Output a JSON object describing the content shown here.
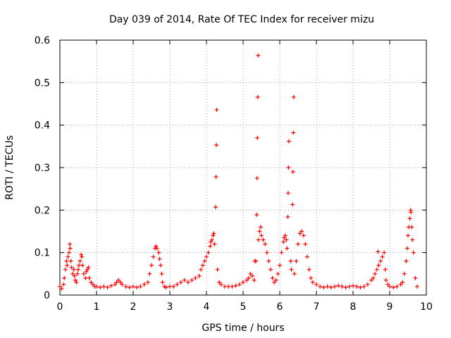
{
  "chart_data": {
    "type": "scatter",
    "title": "Day 039 of 2014, Rate Of TEC Index for receiver mizu",
    "xlabel": "GPS time / hours",
    "ylabel": "ROTI / TECUs",
    "xlim": [
      0,
      10
    ],
    "ylim": [
      0,
      0.6
    ],
    "xticks": [
      "0",
      "1",
      "2",
      "3",
      "4",
      "5",
      "6",
      "7",
      "8",
      "9",
      "10"
    ],
    "yticks": [
      "0",
      "0.1",
      "0.2",
      "0.3",
      "0.4",
      "0.5",
      "0.6"
    ],
    "grid": true,
    "marker": "+",
    "color": "#ff0000",
    "series": [
      {
        "points": [
          [
            0.0,
            0.02
          ],
          [
            0.05,
            0.015
          ],
          [
            0.1,
            0.025
          ],
          [
            0.12,
            0.04
          ],
          [
            0.15,
            0.06
          ],
          [
            0.18,
            0.08
          ],
          [
            0.2,
            0.07
          ],
          [
            0.22,
            0.09
          ],
          [
            0.25,
            0.1
          ],
          [
            0.27,
            0.12
          ],
          [
            0.28,
            0.11
          ],
          [
            0.3,
            0.08
          ],
          [
            0.32,
            0.065
          ],
          [
            0.35,
            0.05
          ],
          [
            0.38,
            0.06
          ],
          [
            0.4,
            0.045
          ],
          [
            0.42,
            0.035
          ],
          [
            0.45,
            0.03
          ],
          [
            0.48,
            0.05
          ],
          [
            0.5,
            0.06
          ],
          [
            0.52,
            0.07
          ],
          [
            0.55,
            0.08
          ],
          [
            0.58,
            0.095
          ],
          [
            0.6,
            0.09
          ],
          [
            0.62,
            0.07
          ],
          [
            0.65,
            0.05
          ],
          [
            0.7,
            0.04
          ],
          [
            0.72,
            0.055
          ],
          [
            0.75,
            0.06
          ],
          [
            0.78,
            0.065
          ],
          [
            0.8,
            0.04
          ],
          [
            0.85,
            0.03
          ],
          [
            0.9,
            0.025
          ],
          [
            0.95,
            0.02
          ],
          [
            1.0,
            0.02
          ],
          [
            1.1,
            0.018
          ],
          [
            1.2,
            0.02
          ],
          [
            1.3,
            0.018
          ],
          [
            1.4,
            0.022
          ],
          [
            1.5,
            0.025
          ],
          [
            1.55,
            0.03
          ],
          [
            1.6,
            0.035
          ],
          [
            1.65,
            0.03
          ],
          [
            1.7,
            0.025
          ],
          [
            1.8,
            0.02
          ],
          [
            1.9,
            0.018
          ],
          [
            2.0,
            0.02
          ],
          [
            2.1,
            0.018
          ],
          [
            2.2,
            0.02
          ],
          [
            2.3,
            0.025
          ],
          [
            2.4,
            0.03
          ],
          [
            2.45,
            0.05
          ],
          [
            2.5,
            0.07
          ],
          [
            2.55,
            0.09
          ],
          [
            2.6,
            0.11
          ],
          [
            2.62,
            0.115
          ],
          [
            2.65,
            0.11
          ],
          [
            2.7,
            0.1
          ],
          [
            2.72,
            0.085
          ],
          [
            2.75,
            0.07
          ],
          [
            2.78,
            0.05
          ],
          [
            2.8,
            0.03
          ],
          [
            2.85,
            0.02
          ],
          [
            2.9,
            0.018
          ],
          [
            3.0,
            0.02
          ],
          [
            3.1,
            0.02
          ],
          [
            3.2,
            0.025
          ],
          [
            3.3,
            0.03
          ],
          [
            3.4,
            0.035
          ],
          [
            3.5,
            0.03
          ],
          [
            3.6,
            0.035
          ],
          [
            3.7,
            0.04
          ],
          [
            3.8,
            0.045
          ],
          [
            3.85,
            0.06
          ],
          [
            3.9,
            0.07
          ],
          [
            3.95,
            0.08
          ],
          [
            4.0,
            0.09
          ],
          [
            4.05,
            0.1
          ],
          [
            4.1,
            0.115
          ],
          [
            4.12,
            0.125
          ],
          [
            4.15,
            0.13
          ],
          [
            4.18,
            0.14
          ],
          [
            4.2,
            0.145
          ],
          [
            4.22,
            0.12
          ],
          [
            4.25,
            0.207
          ],
          [
            4.26,
            0.278
          ],
          [
            4.27,
            0.353
          ],
          [
            4.28,
            0.436
          ],
          [
            4.3,
            0.06
          ],
          [
            4.35,
            0.03
          ],
          [
            4.4,
            0.025
          ],
          [
            4.5,
            0.02
          ],
          [
            4.6,
            0.02
          ],
          [
            4.7,
            0.02
          ],
          [
            4.8,
            0.022
          ],
          [
            4.9,
            0.025
          ],
          [
            5.0,
            0.03
          ],
          [
            5.1,
            0.035
          ],
          [
            5.15,
            0.04
          ],
          [
            5.2,
            0.05
          ],
          [
            5.25,
            0.045
          ],
          [
            5.3,
            0.035
          ],
          [
            5.32,
            0.08
          ],
          [
            5.35,
            0.08
          ],
          [
            5.37,
            0.189
          ],
          [
            5.38,
            0.275
          ],
          [
            5.39,
            0.37
          ],
          [
            5.4,
            0.466
          ],
          [
            5.41,
            0.564
          ],
          [
            5.42,
            0.13
          ],
          [
            5.45,
            0.15
          ],
          [
            5.48,
            0.16
          ],
          [
            5.5,
            0.14
          ],
          [
            5.55,
            0.13
          ],
          [
            5.6,
            0.12
          ],
          [
            5.65,
            0.1
          ],
          [
            5.7,
            0.08
          ],
          [
            5.75,
            0.06
          ],
          [
            5.8,
            0.04
          ],
          [
            5.85,
            0.03
          ],
          [
            5.9,
            0.035
          ],
          [
            5.95,
            0.05
          ],
          [
            6.0,
            0.07
          ],
          [
            6.05,
            0.1
          ],
          [
            6.1,
            0.125
          ],
          [
            6.12,
            0.135
          ],
          [
            6.15,
            0.14
          ],
          [
            6.18,
            0.13
          ],
          [
            6.2,
            0.11
          ],
          [
            6.22,
            0.184
          ],
          [
            6.23,
            0.24
          ],
          [
            6.24,
            0.3
          ],
          [
            6.25,
            0.362
          ],
          [
            6.3,
            0.08
          ],
          [
            6.32,
            0.06
          ],
          [
            6.35,
            0.213
          ],
          [
            6.36,
            0.29
          ],
          [
            6.37,
            0.382
          ],
          [
            6.38,
            0.466
          ],
          [
            6.4,
            0.05
          ],
          [
            6.45,
            0.08
          ],
          [
            6.5,
            0.12
          ],
          [
            6.55,
            0.145
          ],
          [
            6.6,
            0.15
          ],
          [
            6.65,
            0.14
          ],
          [
            6.7,
            0.12
          ],
          [
            6.75,
            0.09
          ],
          [
            6.8,
            0.06
          ],
          [
            6.85,
            0.04
          ],
          [
            6.9,
            0.03
          ],
          [
            7.0,
            0.025
          ],
          [
            7.1,
            0.02
          ],
          [
            7.2,
            0.018
          ],
          [
            7.3,
            0.02
          ],
          [
            7.4,
            0.018
          ],
          [
            7.5,
            0.02
          ],
          [
            7.6,
            0.022
          ],
          [
            7.7,
            0.02
          ],
          [
            7.8,
            0.018
          ],
          [
            7.9,
            0.02
          ],
          [
            8.0,
            0.022
          ],
          [
            8.1,
            0.02
          ],
          [
            8.2,
            0.018
          ],
          [
            8.3,
            0.02
          ],
          [
            8.4,
            0.025
          ],
          [
            8.5,
            0.035
          ],
          [
            8.55,
            0.04
          ],
          [
            8.6,
            0.05
          ],
          [
            8.65,
            0.06
          ],
          [
            8.68,
            0.102
          ],
          [
            8.7,
            0.07
          ],
          [
            8.75,
            0.08
          ],
          [
            8.8,
            0.09
          ],
          [
            8.85,
            0.1
          ],
          [
            8.88,
            0.06
          ],
          [
            8.9,
            0.035
          ],
          [
            8.95,
            0.025
          ],
          [
            9.0,
            0.02
          ],
          [
            9.1,
            0.018
          ],
          [
            9.2,
            0.02
          ],
          [
            9.3,
            0.025
          ],
          [
            9.35,
            0.03
          ],
          [
            9.4,
            0.05
          ],
          [
            9.45,
            0.08
          ],
          [
            9.48,
            0.11
          ],
          [
            9.5,
            0.14
          ],
          [
            9.52,
            0.16
          ],
          [
            9.55,
            0.18
          ],
          [
            9.57,
            0.2
          ],
          [
            9.58,
            0.195
          ],
          [
            9.6,
            0.16
          ],
          [
            9.62,
            0.13
          ],
          [
            9.65,
            0.1
          ],
          [
            9.7,
            0.04
          ],
          [
            9.75,
            0.02
          ]
        ]
      }
    ]
  }
}
